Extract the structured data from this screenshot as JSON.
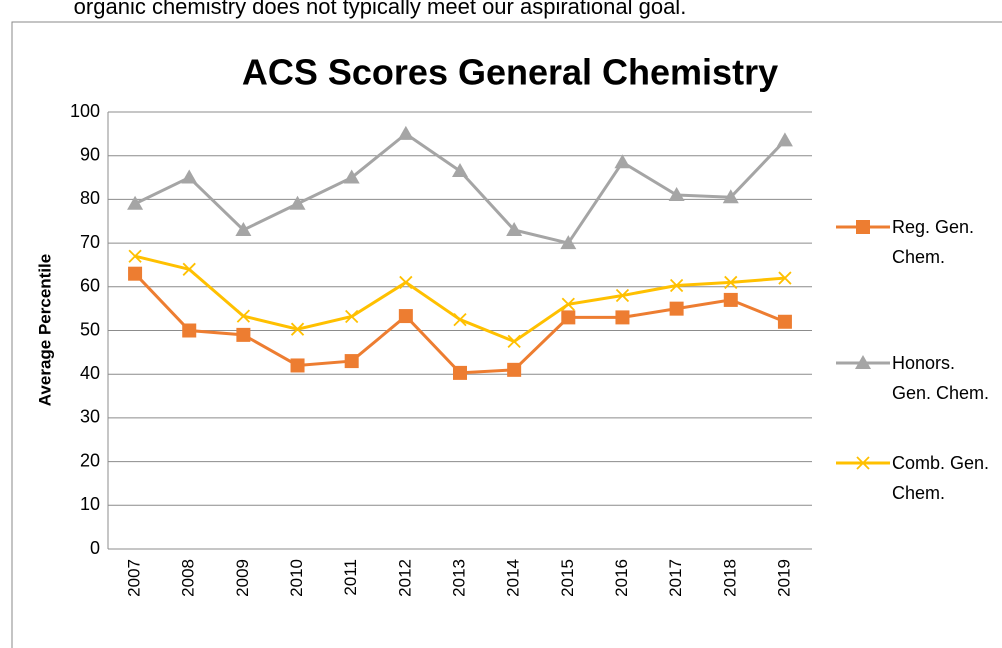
{
  "text": "organic chemistry does not typically meet our aspirational goal.",
  "chart_data": {
    "type": "line",
    "title": "ACS Scores General Chemistry",
    "y_label": "Average Percentile",
    "categories": [
      "2007",
      "2008",
      "2009",
      "2010",
      "2011",
      "2012",
      "2013",
      "2014",
      "2015",
      "2016",
      "2017",
      "2018",
      "2019"
    ],
    "series": [
      {
        "name": "Reg. Gen. Chem.",
        "color": "#ed7d31",
        "marker": "square",
        "values": [
          63,
          50,
          49,
          42,
          43,
          53.3,
          40.3,
          41,
          53,
          53,
          55,
          57,
          52
        ]
      },
      {
        "name": "Honors. Gen. Chem.",
        "color": "#a5a5a5",
        "marker": "triangle",
        "values": [
          79,
          85,
          73,
          79,
          85,
          95,
          86.5,
          73,
          70,
          88.5,
          81,
          80.5,
          93.5
        ]
      },
      {
        "name": "Comb. Gen. Chem.",
        "color": "#ffc000",
        "marker": "x",
        "values": [
          67,
          64,
          53.3,
          50.3,
          53.2,
          61,
          52.5,
          47.5,
          56,
          58,
          60.3,
          61,
          62
        ]
      }
    ],
    "ylim": [
      0,
      100
    ],
    "yticks": [
      0,
      10,
      20,
      30,
      40,
      50,
      60,
      70,
      80,
      90,
      100
    ],
    "grid": true,
    "legend": "right"
  }
}
